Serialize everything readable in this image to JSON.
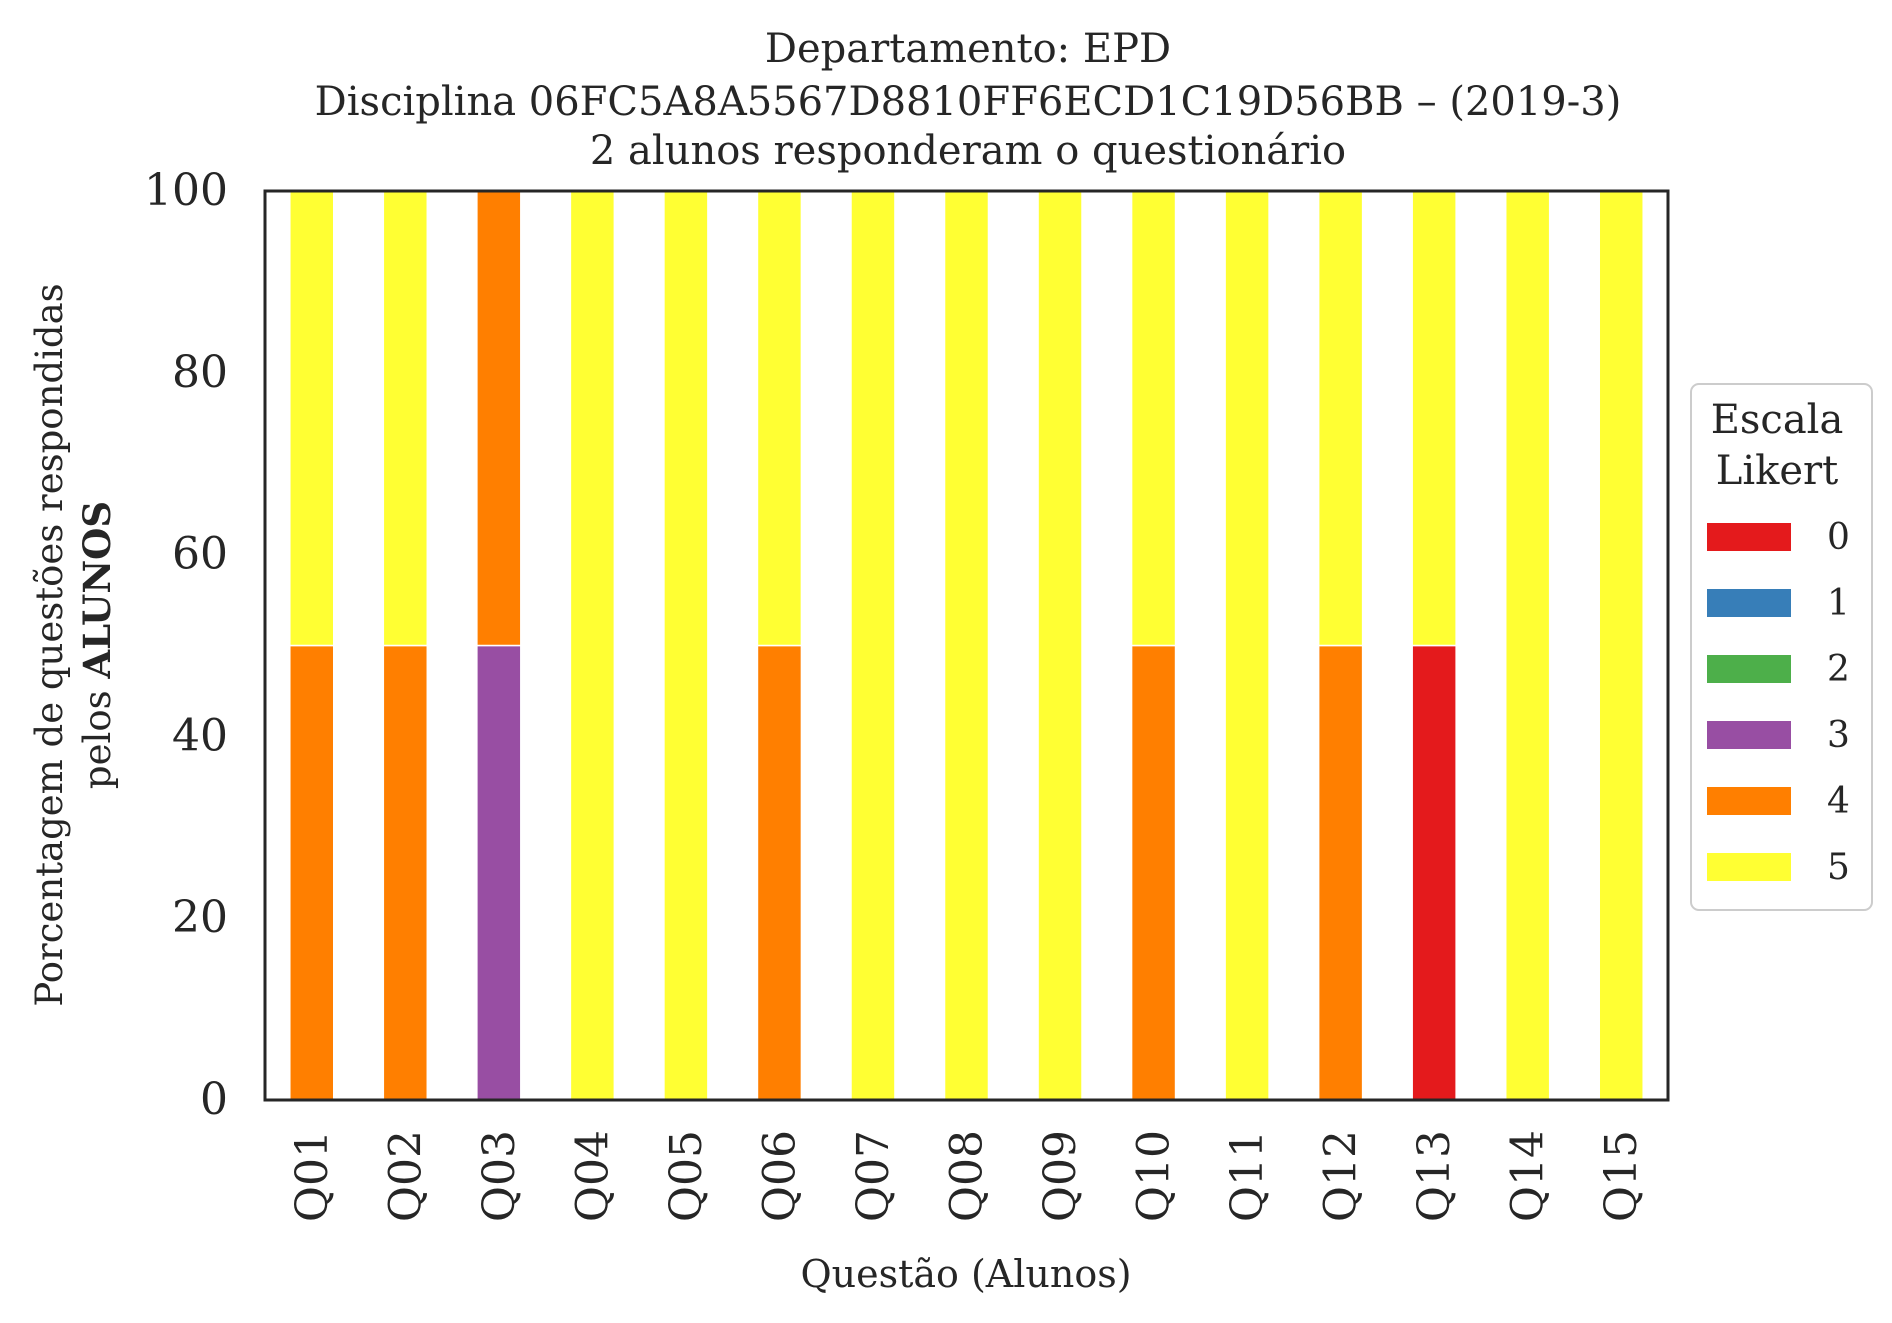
{
  "chart_data": {
    "type": "bar",
    "stacked": true,
    "title_lines": [
      "Departamento: EPD",
      "Disciplina 06FC5A8A5567D8810FF6ECD1C19D56BB – (2019-3)",
      "2 alunos responderam o questionário"
    ],
    "xlabel": "Questão (Alunos)",
    "ylabel_line1": "Porcentagem de questões respondidas",
    "ylabel_line2_prefix": "pelos ",
    "ylabel_line2_bold": "ALUNOS",
    "ylim": [
      0,
      100
    ],
    "yticks": [
      "0",
      "20",
      "40",
      "60",
      "80",
      "100"
    ],
    "grid": false,
    "legend": {
      "title_line1": "Escala",
      "title_line2": "Likert",
      "placement": "center-right outside",
      "entries": [
        "0",
        "1",
        "2",
        "3",
        "4",
        "5"
      ]
    },
    "categories": [
      "Q01",
      "Q02",
      "Q03",
      "Q04",
      "Q05",
      "Q06",
      "Q07",
      "Q08",
      "Q09",
      "Q10",
      "Q11",
      "Q12",
      "Q13",
      "Q14",
      "Q15"
    ],
    "series": [
      {
        "name": "0",
        "color": "#e41a1c",
        "values": [
          0,
          0,
          0,
          0,
          0,
          0,
          0,
          0,
          0,
          0,
          0,
          0,
          50,
          0,
          0
        ]
      },
      {
        "name": "1",
        "color": "#377eb8",
        "values": [
          0,
          0,
          0,
          0,
          0,
          0,
          0,
          0,
          0,
          0,
          0,
          0,
          0,
          0,
          0
        ]
      },
      {
        "name": "2",
        "color": "#4daf4a",
        "values": [
          0,
          0,
          0,
          0,
          0,
          0,
          0,
          0,
          0,
          0,
          0,
          0,
          0,
          0,
          0
        ]
      },
      {
        "name": "3",
        "color": "#984ea3",
        "values": [
          0,
          0,
          50,
          0,
          0,
          0,
          0,
          0,
          0,
          0,
          0,
          0,
          0,
          0,
          0
        ]
      },
      {
        "name": "4",
        "color": "#ff7f00",
        "values": [
          50,
          50,
          50,
          0,
          0,
          50,
          0,
          0,
          0,
          50,
          0,
          50,
          0,
          0,
          0
        ]
      },
      {
        "name": "5",
        "color": "#ffff33",
        "values": [
          50,
          50,
          0,
          100,
          100,
          50,
          100,
          100,
          100,
          50,
          100,
          50,
          50,
          100,
          100
        ]
      }
    ]
  }
}
